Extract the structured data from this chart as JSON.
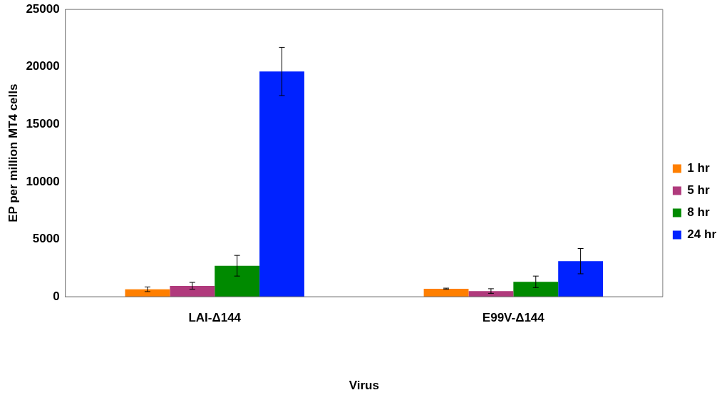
{
  "chart_data": {
    "type": "bar",
    "xlabel": "Virus",
    "ylabel": "EP per million MT4 cells",
    "categories": [
      "LAI-Δ144",
      "E99V-Δ144"
    ],
    "series": [
      {
        "name": "1 hr",
        "color": "#ff7f00",
        "values": [
          650,
          700
        ],
        "errors": [
          200,
          50
        ]
      },
      {
        "name": "5 hr",
        "color": "#b03a7c",
        "values": [
          950,
          500
        ],
        "errors": [
          300,
          200
        ]
      },
      {
        "name": "8 hr",
        "color": "#008a00",
        "values": [
          2700,
          1300
        ],
        "errors": [
          900,
          500
        ]
      },
      {
        "name": "24 hr",
        "color": "#0022ff",
        "values": [
          19600,
          3100
        ],
        "errors": [
          2100,
          1100
        ]
      }
    ],
    "ylim": [
      0,
      25000
    ],
    "yticks": [
      0,
      5000,
      10000,
      15000,
      20000,
      25000
    ],
    "grid": false,
    "legend": "right"
  }
}
